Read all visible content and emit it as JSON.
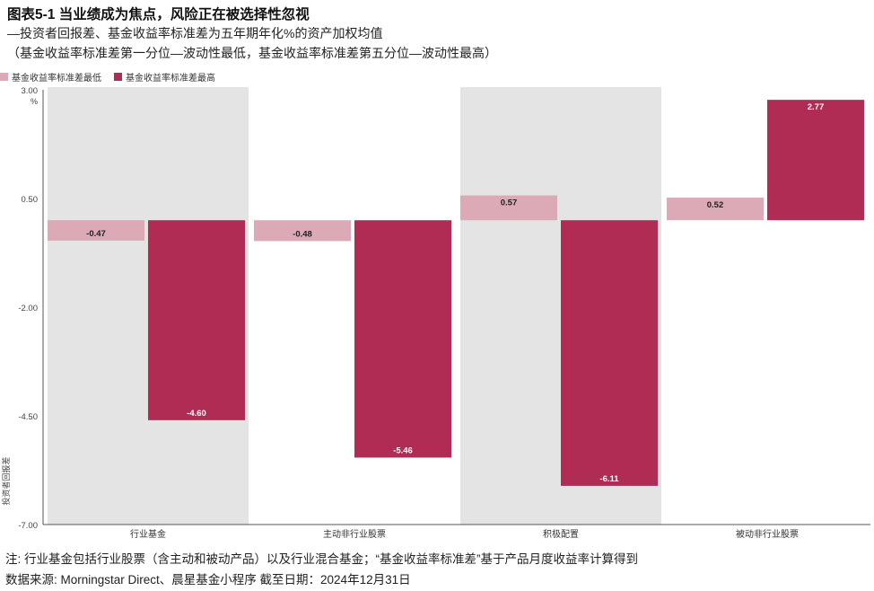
{
  "header": {
    "title": "图表5-1 当业绩成为焦点，风险正在被选择性忽视",
    "subtitle": "—投资者回报差、基金收益率标准差为五年期年化%的资产加权均值",
    "subtitle2": "（基金收益率标准差第一分位—波动性最低，基金收益率标准差第五分位—波动性最高）"
  },
  "legend": [
    {
      "label": "基金收益率标准差最低",
      "color": "#dca9b7"
    },
    {
      "label": "基金收益率标准差最高",
      "color": "#b12c55"
    }
  ],
  "chart_data": {
    "type": "bar",
    "categories": [
      "行业基金",
      "主动非行业股票",
      "积极配置",
      "被动非行业股票"
    ],
    "series": [
      {
        "name": "基金收益率标准差最低",
        "values": [
          -0.47,
          -0.48,
          0.57,
          0.52
        ],
        "labels": [
          "-0.47",
          "-0.48",
          "0.57",
          "0.52"
        ],
        "color": "#dca9b7"
      },
      {
        "name": "基金收益率标准差最高",
        "values": [
          -4.6,
          -5.46,
          -6.11,
          2.77
        ],
        "labels": [
          "-4.60",
          "-5.46",
          "-6.11",
          "2.77"
        ],
        "color": "#b12c55"
      }
    ],
    "yticks": [
      "3.00",
      "0.50",
      "-2.00",
      "-4.50",
      "-7.00"
    ],
    "ytick_values": [
      3.0,
      0.5,
      -2.0,
      -4.5,
      -7.0
    ],
    "yunit": "%",
    "ylabel": "投资者回报差",
    "ylim": [
      -7.0,
      3.0
    ],
    "band_colors": [
      "#e4e4e4",
      "#ffffff",
      "#e4e4e4",
      "#ffffff"
    ]
  },
  "footer": {
    "note": "注: 行业基金包括行业股票（含主动和被动产品）以及行业混合基金；“基金收益率标准差”基于产品月度收益率计算得到",
    "source": "数据来源: Morningstar Direct、晨星基金小程序 截至日期：2024年12月31日"
  }
}
